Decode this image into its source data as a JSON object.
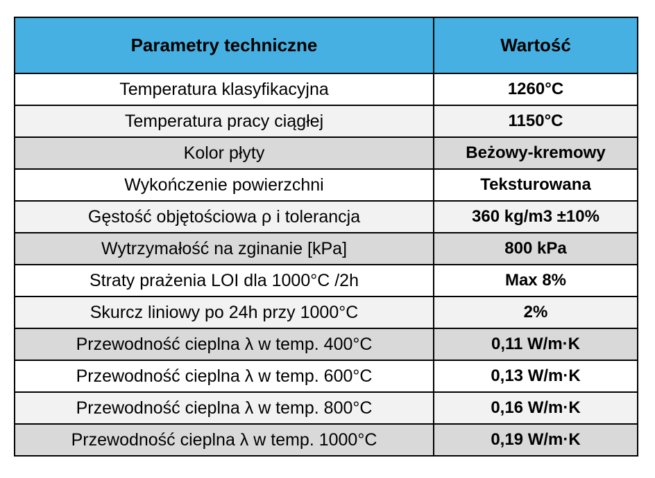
{
  "table": {
    "header": [
      "Parametry techniczne",
      "Wartość"
    ],
    "rows": [
      [
        "Temperatura klasyfikacyjna",
        "1260°C"
      ],
      [
        "Temperatura pracy ciągłej",
        "1150°C"
      ],
      [
        "Kolor płyty",
        "Beżowy-kremowy"
      ],
      [
        "Wykończenie powierzchni",
        "Teksturowana"
      ],
      [
        "Gęstość objętościowa ρ i tolerancja",
        "360 kg/m3 ±10%"
      ],
      [
        "Wytrzymałość na zginanie [kPa]",
        "800 kPa"
      ],
      [
        "Straty prażenia LOI dla 1000°C /2h",
        "Max 8%"
      ],
      [
        "Skurcz liniowy po 24h przy 1000°C",
        "2%"
      ],
      [
        "Przewodność cieplna λ w temp. 400°C",
        "0,11 W/m·K"
      ],
      [
        "Przewodność cieplna λ w temp. 600°C",
        "0,13 W/m·K"
      ],
      [
        "Przewodność cieplna λ w temp. 800°C",
        "0,16 W/m·K"
      ],
      [
        "Przewodność cieplna λ w temp. 1000°C",
        "0,19 W/m·K"
      ]
    ]
  }
}
